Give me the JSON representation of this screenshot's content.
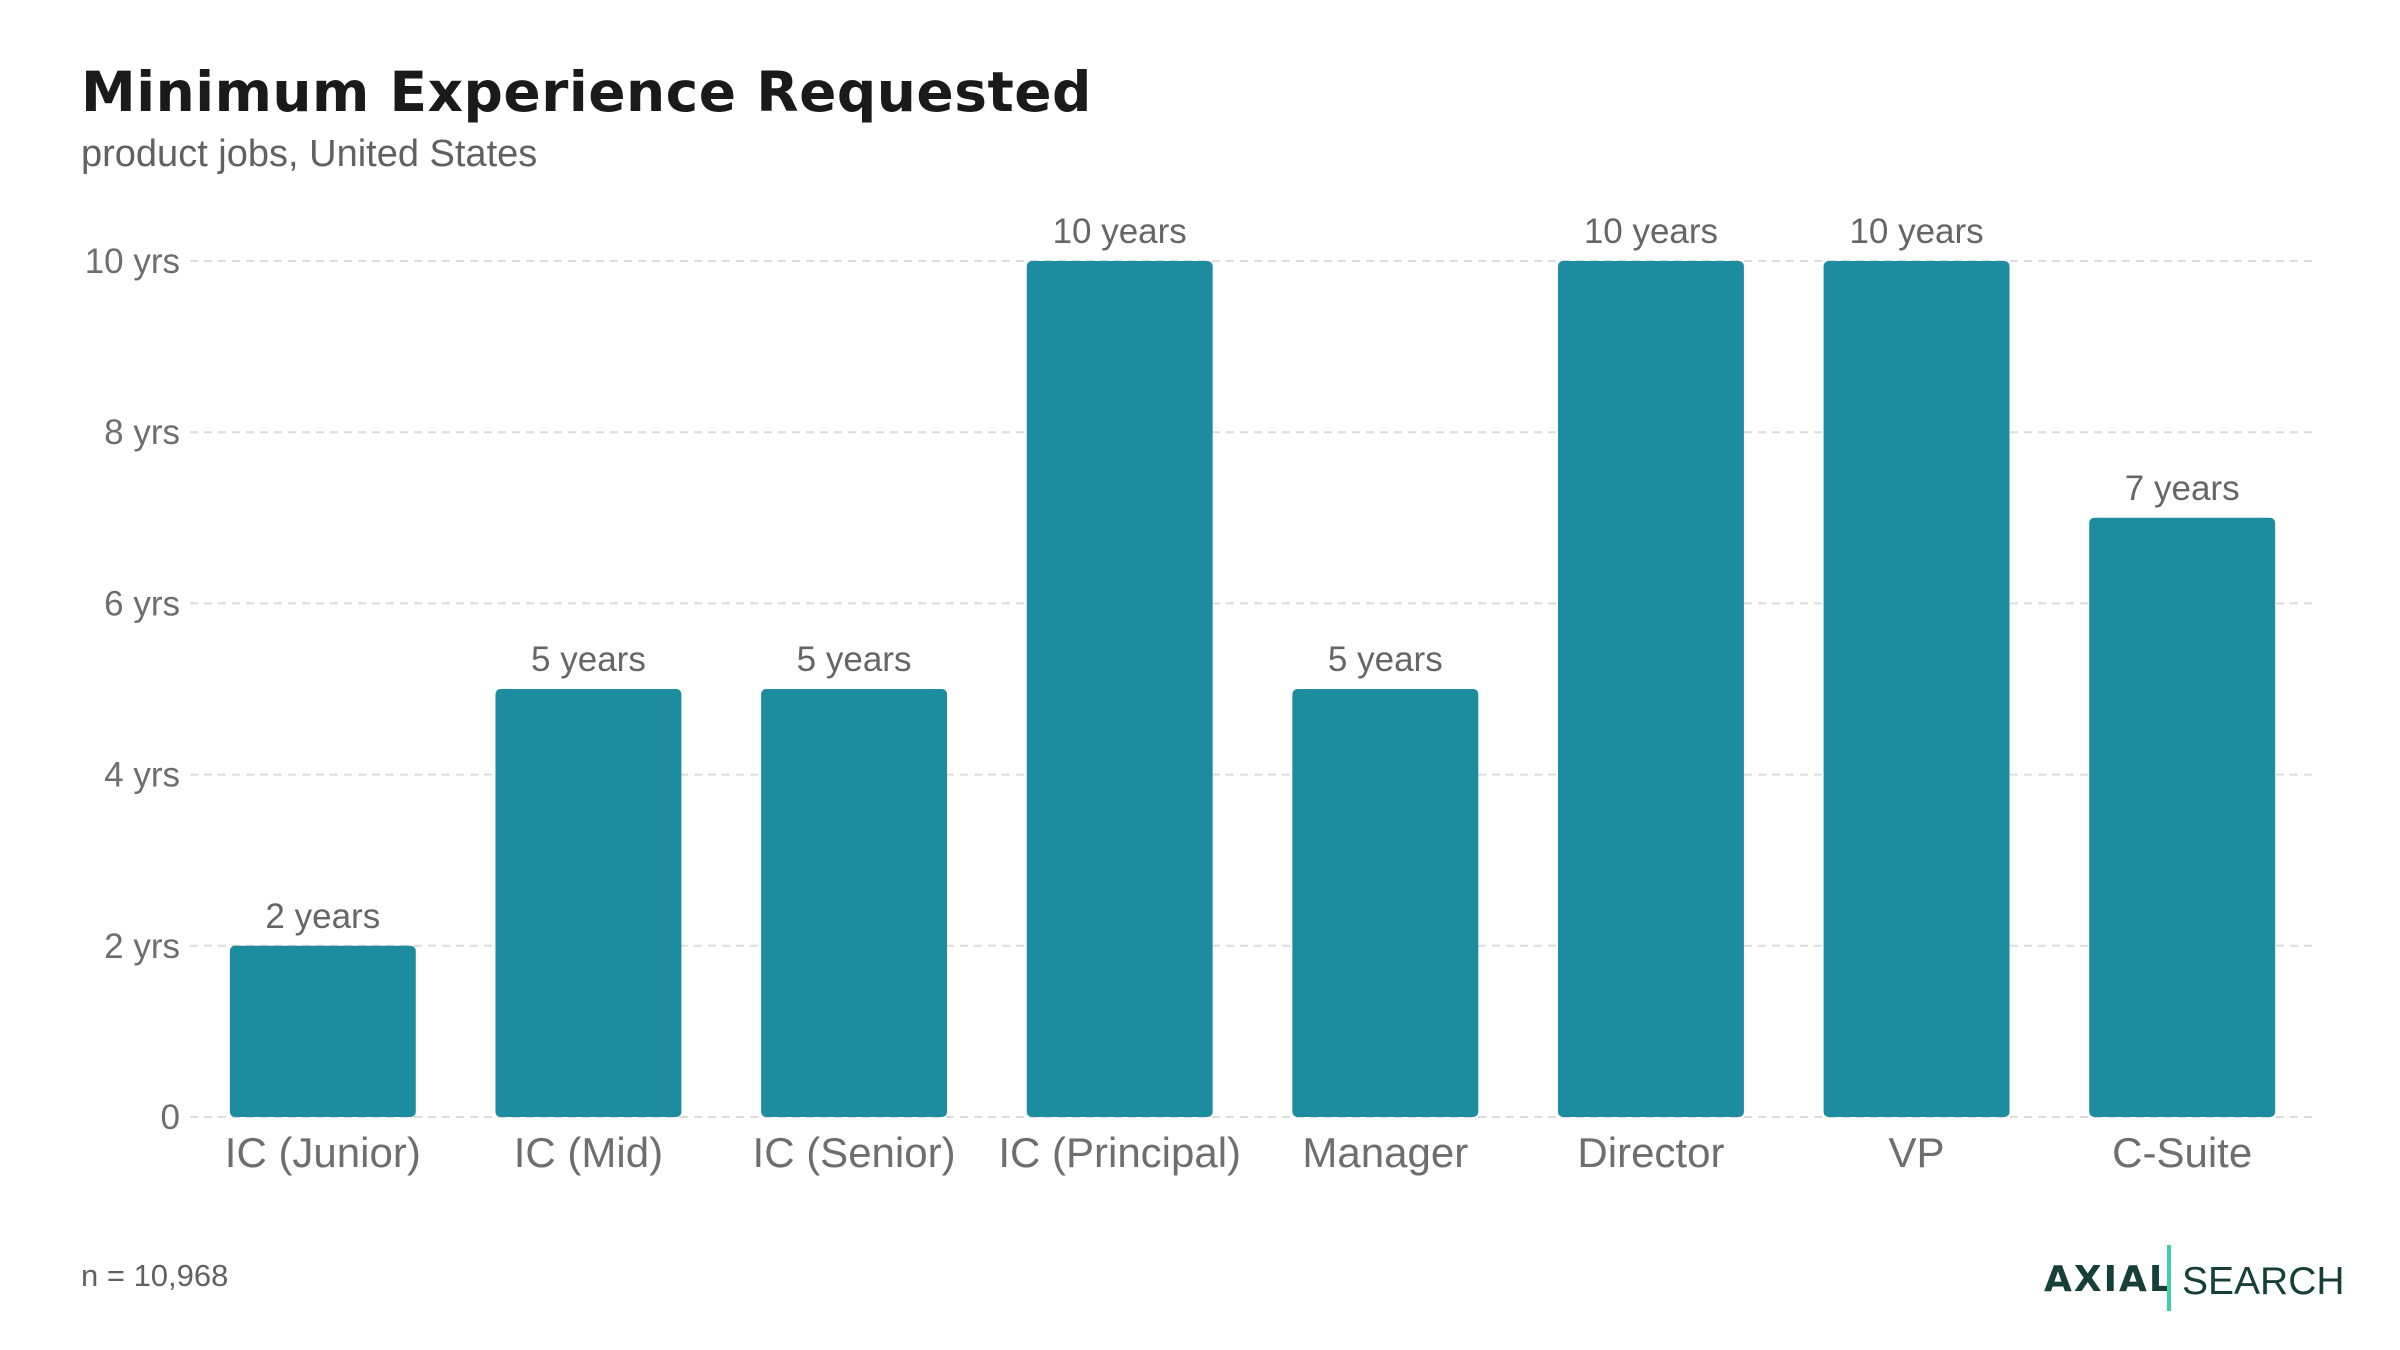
{
  "header": {
    "title": "Minimum Experience Requested",
    "subtitle": "product jobs, United States"
  },
  "footer": {
    "sample_size": "n = 10,968"
  },
  "logo": {
    "brand": "AXIAL",
    "product": "SEARCH",
    "text_color": "#163f3a",
    "divider_color": "#3fd0a4"
  },
  "colors": {
    "bar": "#1d8c9e",
    "axis_text": "#6e6e6e",
    "value_label": "#666666",
    "grid": "#dcdcdc"
  },
  "chart_data": {
    "type": "bar",
    "title": "Minimum Experience Requested",
    "subtitle": "product jobs, United States",
    "categories": [
      "IC (Junior)",
      "IC (Mid)",
      "IC (Senior)",
      "IC (Principal)",
      "Manager",
      "Director",
      "VP",
      "C-Suite"
    ],
    "values": [
      2,
      5,
      5,
      10,
      5,
      10,
      10,
      7
    ],
    "value_labels": [
      "2 years",
      "5 years",
      "5 years",
      "10 years",
      "5 years",
      "10 years",
      "10 years",
      "7 years"
    ],
    "ylim": [
      0,
      10
    ],
    "yticks": [
      0,
      2,
      4,
      6,
      8,
      10
    ],
    "ytick_labels": [
      "0",
      "2 yrs",
      "4 yrs",
      "6 yrs",
      "8 yrs",
      "10 yrs"
    ],
    "xlabel": "",
    "ylabel": "",
    "grid": true,
    "legend": false
  }
}
